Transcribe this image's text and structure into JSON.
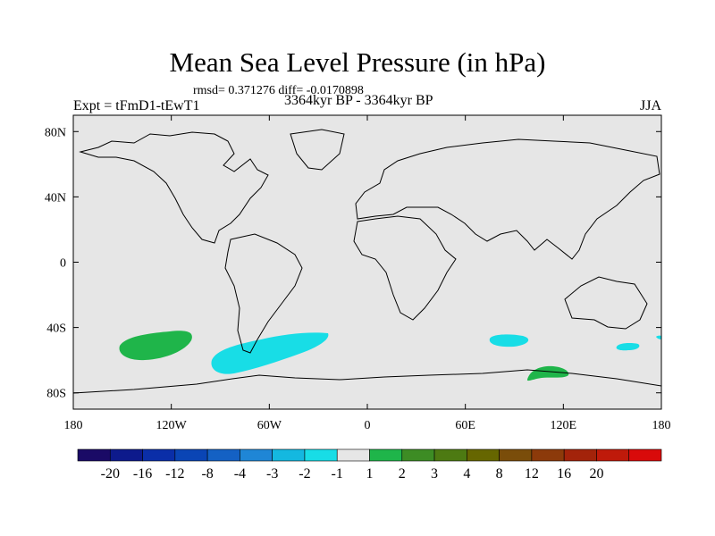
{
  "title": "Mean Sea Level Pressure (in hPa)",
  "stats": "rmsd= 0.371276 diff= -0.0170898",
  "experiment": "Expt = tFmD1-tEwT1",
  "period": "3364kyr BP - 3364kyr BP",
  "season": "JJA",
  "map_extent": {
    "lon": [
      -180,
      180
    ],
    "lat": [
      -90,
      90
    ]
  },
  "x_ticks": [
    {
      "lon": -180,
      "label": "180"
    },
    {
      "lon": -120,
      "label": "120W"
    },
    {
      "lon": -60,
      "label": "60W"
    },
    {
      "lon": 0,
      "label": "0"
    },
    {
      "lon": 60,
      "label": "60E"
    },
    {
      "lon": 120,
      "label": "120E"
    },
    {
      "lon": 180,
      "label": "180"
    }
  ],
  "y_ticks": [
    {
      "lat": 80,
      "label": "80N"
    },
    {
      "lat": 40,
      "label": "40N"
    },
    {
      "lat": 0,
      "label": "0"
    },
    {
      "lat": -40,
      "label": "40S"
    },
    {
      "lat": -80,
      "label": "80S"
    }
  ],
  "colorbar": {
    "colors": [
      "#1a0a66",
      "#0d1a8c",
      "#0a2ea8",
      "#0a45b5",
      "#1461c4",
      "#1f86d6",
      "#14b8e0",
      "#18dde6",
      "#e6e6e6",
      "#1fb54a",
      "#3d8c24",
      "#4d7a12",
      "#666600",
      "#7a4d0a",
      "#8c3a0a",
      "#a3230a",
      "#bf1a0a",
      "#d90a0a"
    ],
    "labels": [
      "-20",
      "-16",
      "-12",
      "-8",
      "-4",
      "-3",
      "-2",
      "-1",
      "1",
      "2",
      "3",
      "4",
      "8",
      "12",
      "16",
      "20"
    ]
  },
  "colors": {
    "background": "#e6e6e6",
    "coast": "#000000",
    "positive": "#1fb54a",
    "negative": "#18dde6"
  },
  "anomalies": [
    {
      "sign": "+",
      "value_range": "1 to 2",
      "center_lon": -128,
      "center_lat": -47
    },
    {
      "sign": "-",
      "value_range": "-2 to -1",
      "center_lon": -55,
      "center_lat": -57
    },
    {
      "sign": "-",
      "value_range": "-2 to -1",
      "center_lon": 81,
      "center_lat": -47
    },
    {
      "sign": "+",
      "value_range": "1 to 2",
      "center_lon": 113,
      "center_lat": -67
    },
    {
      "sign": "-",
      "value_range": "-2 to -1",
      "center_lon": 161,
      "center_lat": -50
    },
    {
      "sign": "-",
      "value_range": "-2 to -1",
      "center_lon": 178,
      "center_lat": -44
    }
  ]
}
